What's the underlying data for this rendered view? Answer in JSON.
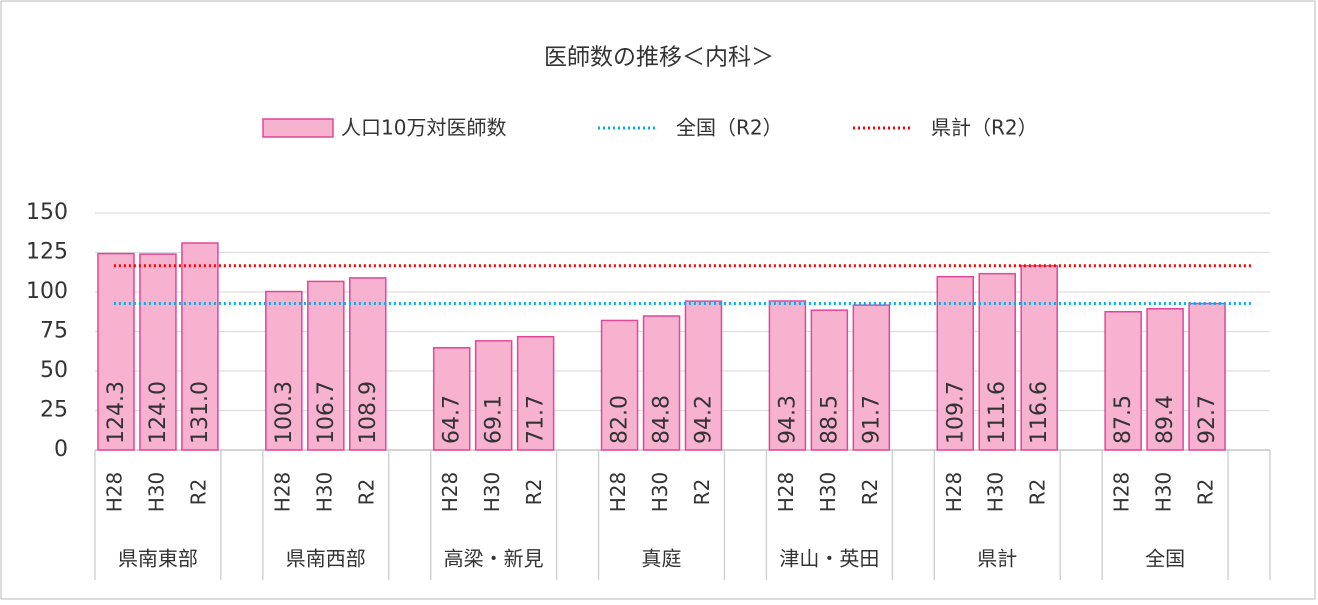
{
  "chart_data": {
    "type": "bar",
    "title": "医師数の推移＜内科＞",
    "groups": [
      "県南東部",
      "県南西部",
      "高梁・新見",
      "真庭",
      "津山・英田",
      "県計",
      "全国"
    ],
    "categories": [
      "H28",
      "H30",
      "R2",
      "H28",
      "H30",
      "R2",
      "H28",
      "H30",
      "R2",
      "H28",
      "H30",
      "R2",
      "H28",
      "H30",
      "R2",
      "H28",
      "H30",
      "R2",
      "H28",
      "H30",
      "R2"
    ],
    "series": [
      {
        "name": "人口10万対医師数",
        "color": "#f7b2d0",
        "edge": "#e0479a",
        "values": [
          124.3,
          124.0,
          131.0,
          100.3,
          106.7,
          108.9,
          64.7,
          69.1,
          71.7,
          82.0,
          84.8,
          94.2,
          94.3,
          88.5,
          91.7,
          109.7,
          111.6,
          116.6,
          87.5,
          89.4,
          92.7
        ],
        "value_labels": [
          "124.3",
          "124.0",
          "131.0",
          "100.3",
          "106.7",
          "108.9",
          "64.7",
          "69.1",
          "71.7",
          "82.0",
          "84.8",
          "94.2",
          "94.3",
          "88.5",
          "91.7",
          "109.7",
          "111.6",
          "116.6",
          "87.5",
          "89.4",
          "92.7"
        ]
      }
    ],
    "reference_lines": [
      {
        "name": "全国（R2）",
        "color": "#00b0f0",
        "value": 92.7
      },
      {
        "name": "県計（R2）",
        "color": "#ff0000",
        "value": 116.6
      }
    ],
    "ylim": [
      0,
      150
    ],
    "yticks": [
      0,
      25,
      50,
      75,
      100,
      125,
      150
    ],
    "grid": true
  }
}
